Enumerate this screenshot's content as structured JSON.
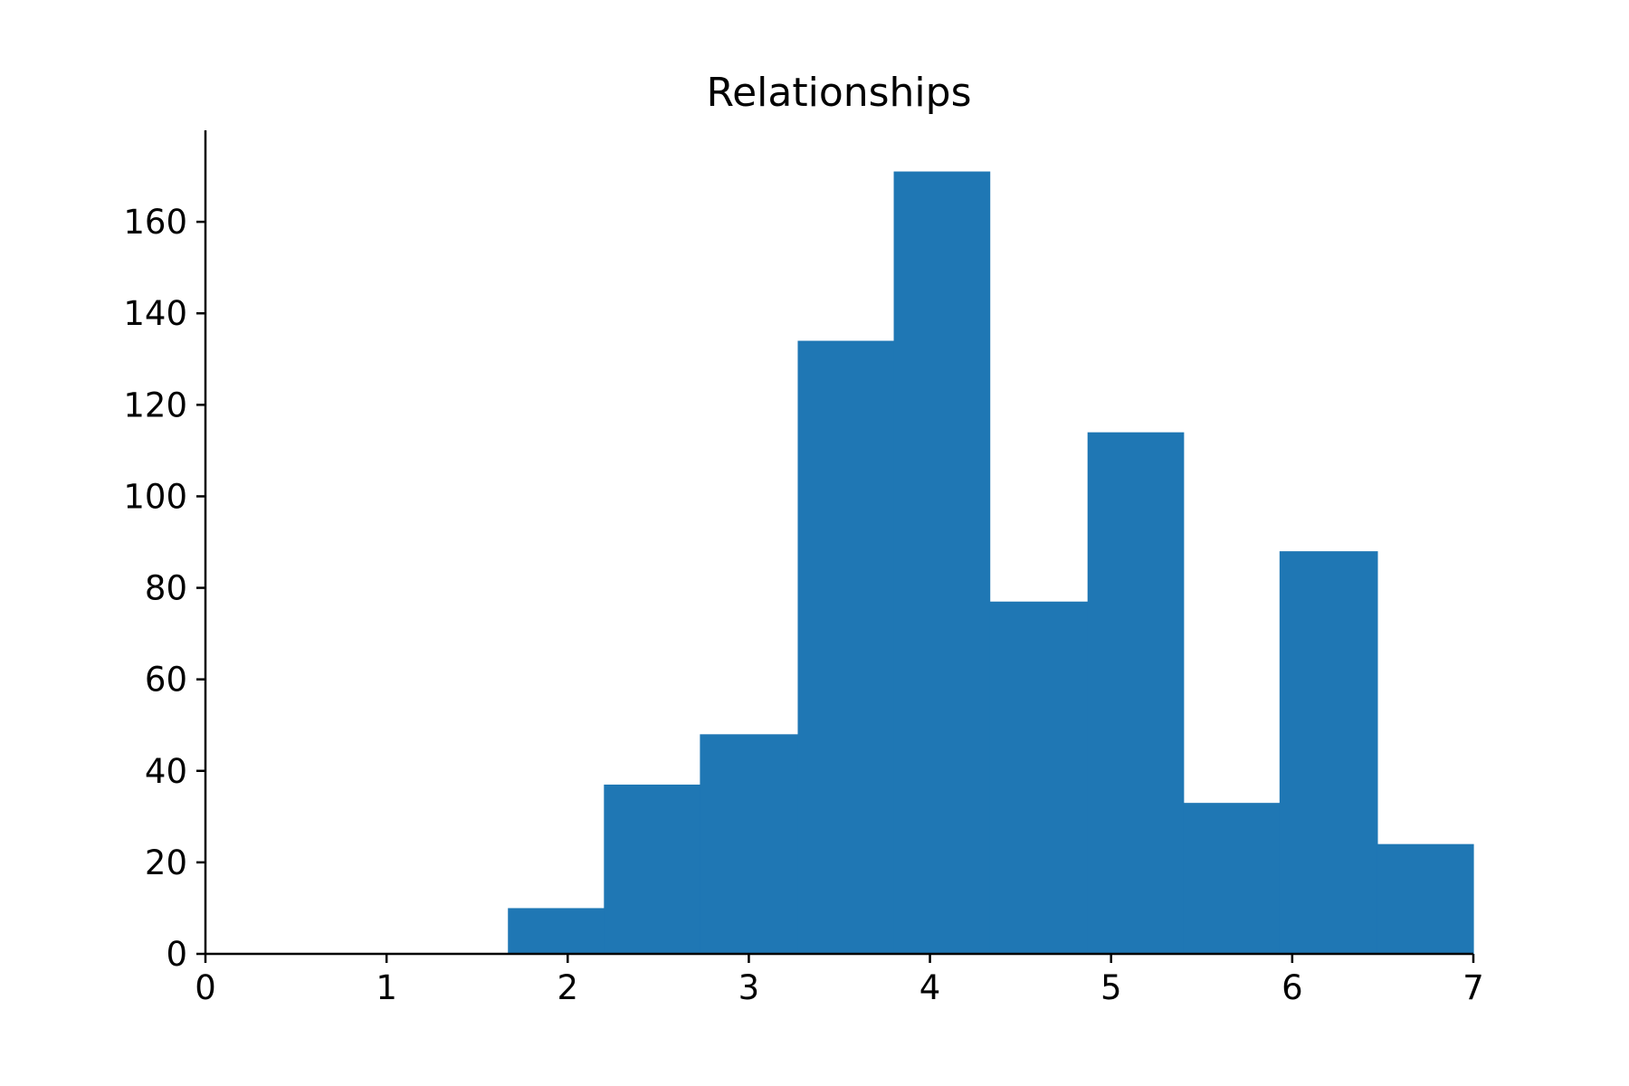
{
  "chart_data": {
    "type": "bar",
    "title": "Relationships",
    "xlabel": "",
    "ylabel": "",
    "xlim": [
      0,
      7
    ],
    "ylim": [
      0,
      180
    ],
    "x_ticks": [
      "0",
      "1",
      "2",
      "3",
      "4",
      "5",
      "6",
      "7"
    ],
    "y_ticks": [
      "0",
      "20",
      "40",
      "60",
      "80",
      "100",
      "120",
      "140",
      "160"
    ],
    "bins": [
      {
        "x0": 1.67,
        "x1": 2.2,
        "value": 10
      },
      {
        "x0": 2.2,
        "x1": 2.73,
        "value": 37
      },
      {
        "x0": 2.73,
        "x1": 3.27,
        "value": 48
      },
      {
        "x0": 3.27,
        "x1": 3.8,
        "value": 134
      },
      {
        "x0": 3.8,
        "x1": 4.33,
        "value": 171
      },
      {
        "x0": 4.33,
        "x1": 4.87,
        "value": 77
      },
      {
        "x0": 4.87,
        "x1": 5.4,
        "value": 114
      },
      {
        "x0": 5.4,
        "x1": 5.93,
        "value": 33
      },
      {
        "x0": 5.93,
        "x1": 6.47,
        "value": 88
      },
      {
        "x0": 6.47,
        "x1": 7.0,
        "value": 24
      }
    ],
    "grid": false,
    "color": "#1f77b4"
  }
}
